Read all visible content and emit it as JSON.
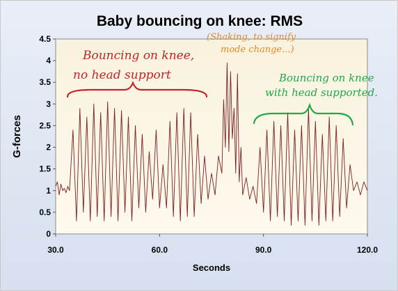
{
  "chart_data": {
    "type": "line",
    "title": "Baby bouncing on knee: RMS",
    "xlabel": "Seconds",
    "ylabel": "G-forces",
    "xlim": [
      30,
      120
    ],
    "ylim": [
      0,
      4.5
    ],
    "x_ticks": [
      30,
      60,
      90,
      120
    ],
    "x_tick_labels": [
      "30.0",
      "60.0",
      "90.0",
      "120.0"
    ],
    "y_ticks": [
      0,
      0.5,
      1,
      1.5,
      2,
      2.5,
      3,
      3.5,
      4,
      4.5
    ],
    "y_tick_labels": [
      "0",
      "0.5",
      "1",
      "1.5",
      "2",
      "2.5",
      "3",
      "3.5",
      "4",
      "4.5"
    ],
    "grid": false,
    "colors": {
      "line": "#7a1f1f",
      "plot_bg_top": "#f8f2de",
      "plot_bg_bottom": "#fff9ee"
    },
    "series": [
      {
        "x": [
          30,
          30.5,
          31,
          31.5,
          32,
          32.5,
          33,
          33.5,
          34,
          35,
          36,
          37,
          38,
          39,
          40,
          41,
          42,
          43,
          44,
          45,
          46,
          47,
          48,
          49,
          50,
          51,
          52,
          53,
          54,
          55,
          56,
          57,
          58,
          59,
          60,
          61,
          62,
          63,
          64,
          65,
          66,
          67,
          68,
          69,
          70,
          71,
          72,
          73,
          74,
          75,
          76,
          77,
          78,
          78.5,
          79,
          79.5,
          80,
          80.5,
          81,
          81.5,
          82,
          82.5,
          83,
          83.5,
          84,
          85,
          86,
          87,
          88,
          89,
          90,
          91,
          92,
          93,
          94,
          95,
          96,
          97,
          98,
          99,
          100,
          101,
          102,
          103,
          104,
          105,
          106,
          107,
          108,
          109,
          110,
          111,
          112,
          113,
          114,
          115,
          116,
          117,
          118,
          119,
          120
        ],
        "y": [
          1.1,
          1.2,
          0.9,
          1.15,
          1.0,
          1.05,
          0.95,
          1.1,
          1.0,
          2.4,
          0.3,
          2.9,
          0.5,
          2.7,
          0.3,
          3.0,
          0.4,
          2.8,
          0.3,
          3.05,
          0.4,
          2.9,
          0.3,
          2.85,
          0.5,
          2.7,
          0.3,
          2.5,
          0.6,
          2.3,
          0.5,
          1.9,
          0.8,
          2.4,
          0.6,
          1.6,
          0.6,
          2.6,
          0.4,
          2.8,
          0.3,
          2.9,
          0.4,
          2.8,
          0.4,
          2.3,
          0.7,
          1.8,
          0.8,
          1.4,
          0.9,
          1.8,
          1.4,
          3.1,
          2.0,
          3.95,
          1.9,
          3.75,
          2.2,
          2.9,
          1.4,
          3.7,
          1.2,
          2.0,
          0.9,
          1.3,
          0.8,
          1.1,
          0.7,
          2.0,
          0.5,
          2.4,
          0.3,
          2.6,
          0.4,
          2.5,
          0.3,
          2.8,
          0.2,
          2.4,
          0.3,
          2.5,
          0.2,
          2.9,
          0.3,
          2.6,
          0.2,
          2.3,
          0.3,
          2.7,
          0.3,
          2.5,
          0.4,
          2.2,
          0.6,
          1.6,
          1.0,
          1.2,
          0.9,
          1.2,
          1.0
        ]
      }
    ],
    "annotations": [
      {
        "text_lines": [
          "Bouncing on knee,",
          "no head support"
        ],
        "color": "#c4232b",
        "x_range": [
          35,
          74
        ]
      },
      {
        "text_lines": [
          "(Shaking, to signify",
          "mode change...)"
        ],
        "color": "#e08a2a",
        "x_range": [
          76,
          86
        ]
      },
      {
        "text_lines": [
          "Bouncing on knee",
          "with head supported."
        ],
        "color": "#20a84a",
        "x_range": [
          87,
          116
        ]
      }
    ]
  }
}
